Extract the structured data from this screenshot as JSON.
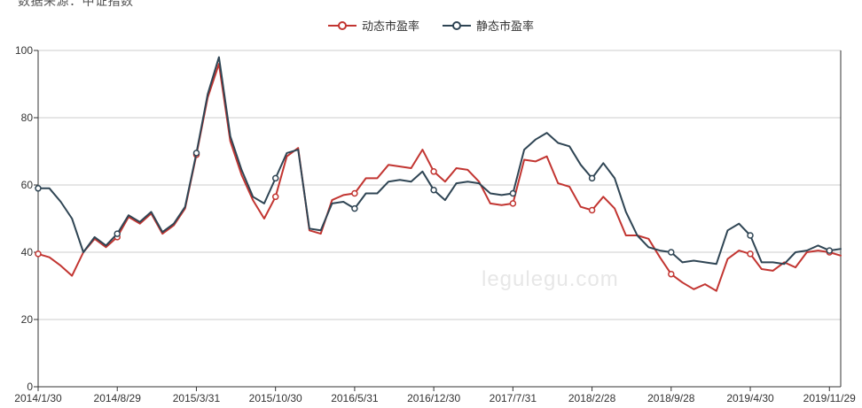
{
  "meta": {
    "source_note": "数据来源：中证指数",
    "watermark": "legulegu.com"
  },
  "legend": [
    {
      "label": "动态市盈率",
      "color": "#c23531"
    },
    {
      "label": "静态市盈率",
      "color": "#2f4554"
    }
  ],
  "colors": {
    "dynamic_pe": "#c23531",
    "static_pe": "#2f4554",
    "axis": "#333333",
    "gridline": "#cccccc",
    "label": "#333333"
  },
  "chart_data": {
    "type": "line",
    "title": "",
    "xlabel": "",
    "ylabel": "",
    "x_count": 72,
    "x_tick_labels": [
      "2014/1/30",
      "2014/8/29",
      "2015/3/31",
      "2015/10/30",
      "2016/5/31",
      "2016/12/30",
      "2017/7/31",
      "2018/2/28",
      "2018/9/28",
      "2019/4/30",
      "2019/11/29"
    ],
    "x_tick_indices": [
      0,
      7,
      14,
      21,
      28,
      35,
      42,
      49,
      56,
      63,
      70
    ],
    "y_ticks": [
      0,
      20,
      40,
      60,
      80,
      100
    ],
    "ylim": [
      0,
      100
    ],
    "grid": true,
    "legend_position": "top-center",
    "marker_indices": [
      0,
      7,
      14,
      21,
      28,
      35,
      42,
      49,
      56,
      63,
      70
    ],
    "series": [
      {
        "name": "动态市盈率",
        "color": "#c23531",
        "values": [
          39.5,
          38.5,
          36,
          33,
          40,
          44,
          41.5,
          44.5,
          50.5,
          48.5,
          51.5,
          45.5,
          48,
          53,
          69,
          86,
          96,
          73,
          63,
          55.5,
          50,
          56.5,
          68.5,
          71,
          46.5,
          45.5,
          55.5,
          57,
          57.5,
          62,
          62,
          66,
          65.5,
          65,
          70.5,
          64,
          61,
          65,
          64.5,
          61,
          54.5,
          54,
          54.5,
          67.5,
          67,
          68.5,
          60.5,
          59.5,
          53.5,
          52.5,
          56.5,
          53,
          45,
          45,
          44,
          38.5,
          33.5,
          31,
          29,
          30.5,
          28.5,
          38,
          40.5,
          39.5,
          35,
          34.5,
          37,
          35.5,
          40,
          40.5,
          40,
          39
        ]
      },
      {
        "name": "静态市盈率",
        "color": "#2f4554",
        "values": [
          59,
          59,
          55,
          50,
          40,
          44.5,
          42,
          45.5,
          51,
          49,
          52,
          46,
          48.5,
          53.5,
          69.5,
          87,
          98,
          74.5,
          64.5,
          56.5,
          54.5,
          62,
          69.5,
          70.5,
          47,
          46.5,
          54.5,
          55,
          53,
          57.5,
          57.5,
          61,
          61.5,
          61,
          64,
          58.5,
          55.5,
          60.5,
          61,
          60.5,
          57.5,
          57,
          57.5,
          70.5,
          73.5,
          75.5,
          72.5,
          71.5,
          66,
          62,
          66.5,
          62,
          52,
          45,
          41.5,
          40.5,
          40,
          37,
          37.5,
          37,
          36.5,
          46.5,
          48.5,
          45,
          37,
          37,
          36.5,
          40,
          40.5,
          42,
          40.5,
          41
        ]
      }
    ]
  }
}
